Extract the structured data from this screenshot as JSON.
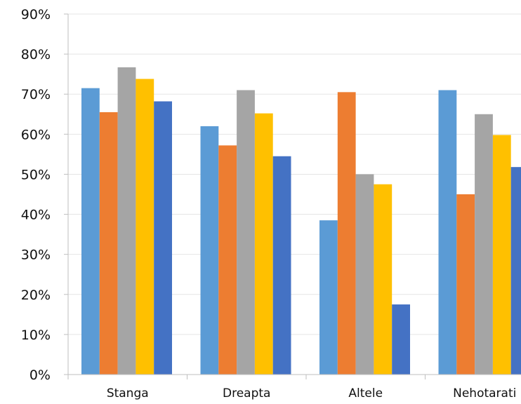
{
  "chart_data": {
    "type": "bar",
    "categories": [
      "Stanga",
      "Dreapta",
      "Altele",
      "Nehotarati"
    ],
    "series": [
      {
        "values": [
          71.5,
          62.0,
          38.5,
          71.0
        ],
        "color": "#5B9BD5"
      },
      {
        "values": [
          65.5,
          57.2,
          70.5,
          45.0
        ],
        "color": "#ED7D31"
      },
      {
        "values": [
          76.7,
          71.0,
          50.0,
          65.0
        ],
        "color": "#A5A5A5"
      },
      {
        "values": [
          73.8,
          65.2,
          47.5,
          59.8
        ],
        "color": "#FFC000"
      },
      {
        "values": [
          68.2,
          54.5,
          17.5,
          51.8
        ],
        "color": "#4472C4"
      }
    ],
    "yticks": [
      "0%",
      "10%",
      "20%",
      "30%",
      "40%",
      "50%",
      "60%",
      "70%",
      "80%",
      "90%"
    ],
    "ylim": [
      0,
      90
    ],
    "grid": true,
    "legend": "none",
    "colors": {
      "grid": "#E5E5E5",
      "axis": "#BFBFBF"
    }
  }
}
